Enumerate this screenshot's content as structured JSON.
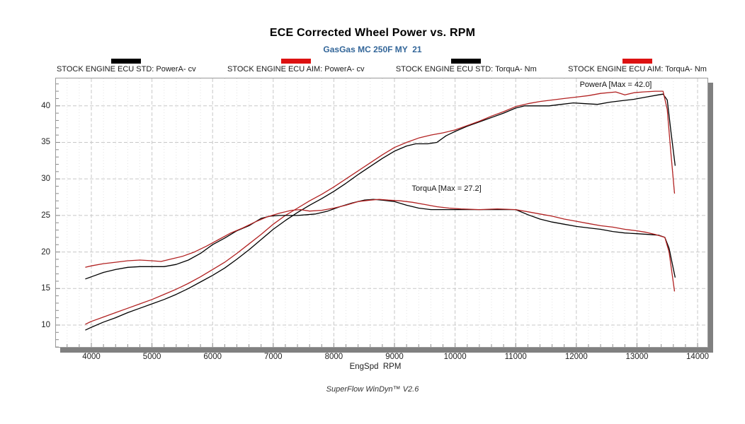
{
  "page": {
    "title": "ECE Corrected Wheel Power vs. RPM",
    "subtitle": "GasGas MC 250F MY  21",
    "subtitle_color": "#336699",
    "footer": "SuperFlow WinDyn™ V2.6"
  },
  "chart_data": {
    "type": "line",
    "title": "ECE Corrected Wheel Power vs. RPM",
    "subtitle": "GasGas MC 250F MY  21",
    "xlabel": "EngSpd  RPM",
    "ylabel": "",
    "xlim": [
      3416,
      14163
    ],
    "ylim": [
      7.0,
      43.75
    ],
    "x_ticks": [
      4000,
      5000,
      6000,
      7000,
      8000,
      9000,
      10000,
      11000,
      12000,
      13000,
      14000
    ],
    "y_ticks": [
      10,
      15,
      20,
      25,
      30,
      35,
      40
    ],
    "minor_x_step": 200,
    "minor_y_step": 1,
    "grid": {
      "major_color": "#c8c8c8",
      "minor_color": "#e3e3e3",
      "tick_color": "#8a8a8a",
      "frame_color": "#9a9a9a",
      "shadow_color": "#808080",
      "grid_on": true
    },
    "legend_position": "top",
    "annotations": [
      {
        "text": "PowerA [Max = 42.0]",
        "rpm": 12650,
        "value": 42.9
      },
      {
        "text": "TorquA [Max = 27.2]",
        "rpm": 9860,
        "value": 28.7
      }
    ],
    "series": [
      {
        "id": "power-std",
        "label": "STOCK ENGINE ECU STD: PowerA- cv",
        "color": "#000000",
        "swatch_color": "#000000",
        "unit": "cv",
        "points": [
          [
            3900,
            9.3
          ],
          [
            4000,
            9.7
          ],
          [
            4200,
            10.4
          ],
          [
            4400,
            11.0
          ],
          [
            4600,
            11.7
          ],
          [
            4800,
            12.3
          ],
          [
            5000,
            12.9
          ],
          [
            5200,
            13.5
          ],
          [
            5400,
            14.2
          ],
          [
            5600,
            15.0
          ],
          [
            5800,
            15.9
          ],
          [
            6000,
            16.8
          ],
          [
            6200,
            17.8
          ],
          [
            6400,
            19.0
          ],
          [
            6600,
            20.3
          ],
          [
            6800,
            21.7
          ],
          [
            7000,
            23.1
          ],
          [
            7200,
            24.3
          ],
          [
            7400,
            25.4
          ],
          [
            7600,
            26.4
          ],
          [
            7800,
            27.3
          ],
          [
            8000,
            28.3
          ],
          [
            8200,
            29.4
          ],
          [
            8400,
            30.6
          ],
          [
            8600,
            31.7
          ],
          [
            8800,
            32.8
          ],
          [
            9000,
            33.8
          ],
          [
            9200,
            34.5
          ],
          [
            9350,
            34.8
          ],
          [
            9550,
            34.8
          ],
          [
            9700,
            35.0
          ],
          [
            9850,
            35.9
          ],
          [
            10000,
            36.5
          ],
          [
            10200,
            37.2
          ],
          [
            10400,
            37.8
          ],
          [
            10600,
            38.4
          ],
          [
            10800,
            39.0
          ],
          [
            11000,
            39.7
          ],
          [
            11150,
            40.0
          ],
          [
            11350,
            40.0
          ],
          [
            11550,
            40.0
          ],
          [
            11750,
            40.2
          ],
          [
            11950,
            40.4
          ],
          [
            12150,
            40.3
          ],
          [
            12350,
            40.2
          ],
          [
            12550,
            40.5
          ],
          [
            12750,
            40.7
          ],
          [
            12950,
            40.9
          ],
          [
            13150,
            41.2
          ],
          [
            13350,
            41.5
          ],
          [
            13430,
            41.6
          ],
          [
            13500,
            40.8
          ],
          [
            13560,
            36.5
          ],
          [
            13630,
            31.8
          ]
        ]
      },
      {
        "id": "power-aim",
        "label": "STOCK ENGINE ECU AIM: PowerA- cv",
        "color": "#b22222",
        "swatch_color": "#dd1111",
        "unit": "cv",
        "points": [
          [
            3900,
            10.1
          ],
          [
            4000,
            10.5
          ],
          [
            4200,
            11.1
          ],
          [
            4400,
            11.7
          ],
          [
            4600,
            12.3
          ],
          [
            4800,
            12.9
          ],
          [
            5000,
            13.5
          ],
          [
            5200,
            14.2
          ],
          [
            5400,
            14.9
          ],
          [
            5600,
            15.7
          ],
          [
            5800,
            16.6
          ],
          [
            6000,
            17.6
          ],
          [
            6200,
            18.6
          ],
          [
            6400,
            19.8
          ],
          [
            6600,
            21.1
          ],
          [
            6800,
            22.4
          ],
          [
            7000,
            23.8
          ],
          [
            7200,
            25.0
          ],
          [
            7400,
            26.0
          ],
          [
            7600,
            27.0
          ],
          [
            7800,
            27.9
          ],
          [
            8000,
            28.9
          ],
          [
            8200,
            30.0
          ],
          [
            8400,
            31.1
          ],
          [
            8600,
            32.2
          ],
          [
            8800,
            33.3
          ],
          [
            9000,
            34.3
          ],
          [
            9200,
            35.0
          ],
          [
            9400,
            35.6
          ],
          [
            9600,
            36.0
          ],
          [
            9800,
            36.3
          ],
          [
            10000,
            36.7
          ],
          [
            10200,
            37.3
          ],
          [
            10400,
            37.9
          ],
          [
            10600,
            38.6
          ],
          [
            10800,
            39.2
          ],
          [
            11000,
            39.9
          ],
          [
            11200,
            40.3
          ],
          [
            11400,
            40.6
          ],
          [
            11600,
            40.8
          ],
          [
            11800,
            41.0
          ],
          [
            12000,
            41.2
          ],
          [
            12200,
            41.4
          ],
          [
            12400,
            41.7
          ],
          [
            12650,
            41.9
          ],
          [
            12800,
            41.5
          ],
          [
            12950,
            41.8
          ],
          [
            13100,
            41.9
          ],
          [
            13300,
            42.0
          ],
          [
            13430,
            42.0
          ],
          [
            13500,
            39.5
          ],
          [
            13560,
            33.5
          ],
          [
            13620,
            28.0
          ]
        ]
      },
      {
        "id": "torque-std",
        "label": "STOCK ENGINE ECU STD: TorquA- Nm",
        "color": "#000000",
        "swatch_color": "#000000",
        "unit": "Nm",
        "points": [
          [
            3900,
            16.3
          ],
          [
            4000,
            16.6
          ],
          [
            4200,
            17.2
          ],
          [
            4400,
            17.6
          ],
          [
            4600,
            17.9
          ],
          [
            4800,
            18.0
          ],
          [
            5000,
            18.0
          ],
          [
            5200,
            18.0
          ],
          [
            5400,
            18.3
          ],
          [
            5600,
            18.9
          ],
          [
            5800,
            19.8
          ],
          [
            6000,
            21.0
          ],
          [
            6200,
            21.9
          ],
          [
            6400,
            22.9
          ],
          [
            6600,
            23.6
          ],
          [
            6800,
            24.6
          ],
          [
            6950,
            24.9
          ],
          [
            7100,
            25.0
          ],
          [
            7400,
            25.0
          ],
          [
            7700,
            25.2
          ],
          [
            7900,
            25.6
          ],
          [
            8100,
            26.2
          ],
          [
            8300,
            26.7
          ],
          [
            8500,
            27.1
          ],
          [
            8650,
            27.2
          ],
          [
            8800,
            27.1
          ],
          [
            9000,
            26.9
          ],
          [
            9200,
            26.4
          ],
          [
            9400,
            26.0
          ],
          [
            9600,
            25.8
          ],
          [
            9800,
            25.8
          ],
          [
            10100,
            25.8
          ],
          [
            10400,
            25.8
          ],
          [
            10700,
            25.8
          ],
          [
            11000,
            25.8
          ],
          [
            11200,
            25.1
          ],
          [
            11400,
            24.5
          ],
          [
            11600,
            24.1
          ],
          [
            11800,
            23.8
          ],
          [
            12000,
            23.5
          ],
          [
            12200,
            23.3
          ],
          [
            12400,
            23.1
          ],
          [
            12600,
            22.8
          ],
          [
            12800,
            22.6
          ],
          [
            13000,
            22.5
          ],
          [
            13200,
            22.4
          ],
          [
            13360,
            22.3
          ],
          [
            13460,
            22.0
          ],
          [
            13530,
            20.5
          ],
          [
            13630,
            16.5
          ]
        ]
      },
      {
        "id": "torque-aim",
        "label": "STOCK ENGINE ECU AIM: TorquA- Nm",
        "color": "#b22222",
        "swatch_color": "#dd1111",
        "unit": "Nm",
        "points": [
          [
            3900,
            17.9
          ],
          [
            4000,
            18.1
          ],
          [
            4200,
            18.4
          ],
          [
            4400,
            18.6
          ],
          [
            4600,
            18.8
          ],
          [
            4800,
            18.9
          ],
          [
            5000,
            18.8
          ],
          [
            5150,
            18.7
          ],
          [
            5300,
            19.0
          ],
          [
            5500,
            19.4
          ],
          [
            5700,
            20.0
          ],
          [
            5900,
            20.8
          ],
          [
            6100,
            21.7
          ],
          [
            6300,
            22.6
          ],
          [
            6500,
            23.3
          ],
          [
            6700,
            24.1
          ],
          [
            6900,
            24.8
          ],
          [
            7100,
            25.3
          ],
          [
            7300,
            25.7
          ],
          [
            7450,
            25.8
          ],
          [
            7600,
            25.6
          ],
          [
            7800,
            25.7
          ],
          [
            8000,
            26.0
          ],
          [
            8200,
            26.4
          ],
          [
            8400,
            26.9
          ],
          [
            8600,
            27.1
          ],
          [
            8750,
            27.2
          ],
          [
            8900,
            27.1
          ],
          [
            9100,
            27.0
          ],
          [
            9300,
            26.8
          ],
          [
            9500,
            26.5
          ],
          [
            9700,
            26.2
          ],
          [
            9900,
            26.0
          ],
          [
            10100,
            25.9
          ],
          [
            10400,
            25.8
          ],
          [
            10700,
            25.9
          ],
          [
            11000,
            25.8
          ],
          [
            11200,
            25.5
          ],
          [
            11400,
            25.2
          ],
          [
            11600,
            24.9
          ],
          [
            11800,
            24.5
          ],
          [
            12000,
            24.2
          ],
          [
            12200,
            23.9
          ],
          [
            12400,
            23.6
          ],
          [
            12600,
            23.4
          ],
          [
            12800,
            23.1
          ],
          [
            13000,
            22.9
          ],
          [
            13150,
            22.7
          ],
          [
            13300,
            22.4
          ],
          [
            13460,
            22.0
          ],
          [
            13530,
            20.0
          ],
          [
            13620,
            14.6
          ]
        ]
      }
    ]
  }
}
